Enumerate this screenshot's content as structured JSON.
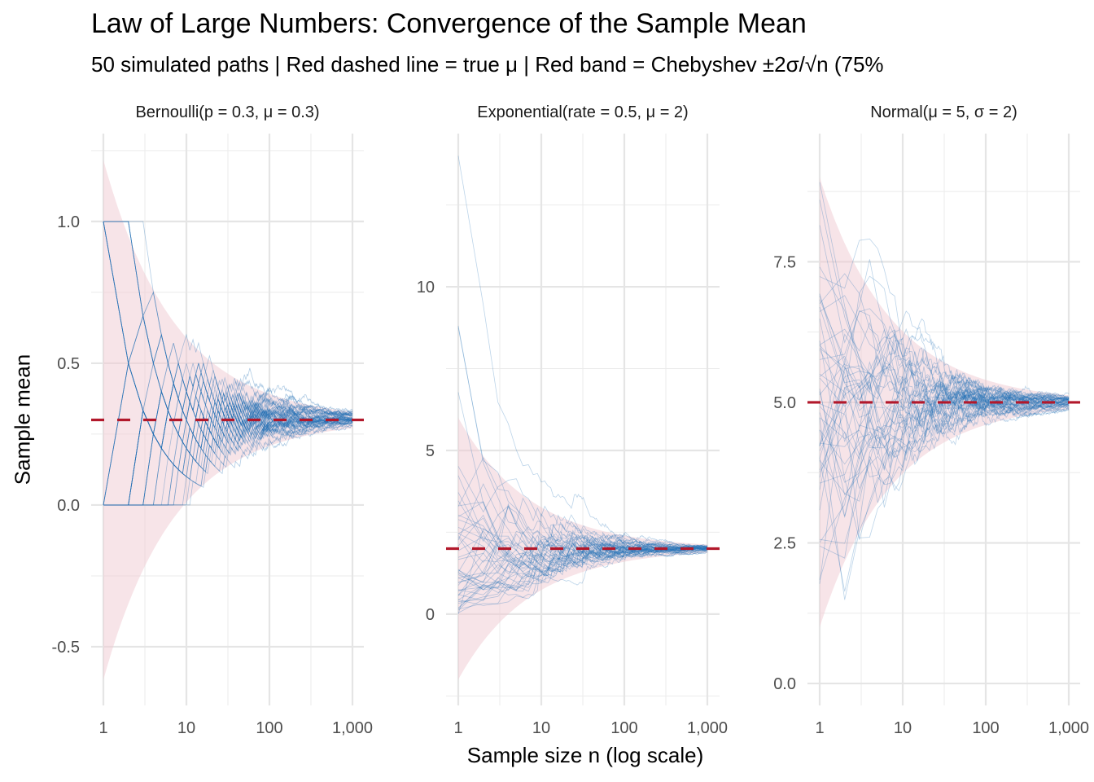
{
  "title": "Law of Large Numbers: Convergence of the Sample Mean",
  "subtitle": "50 simulated paths  |  Red dashed line = true μ  |  Red band = Chebyshev ±2σ/√n  (75%",
  "chart_data": {
    "type": "line",
    "title": "Law of Large Numbers: Convergence of the Sample Mean",
    "subtitle": "50 simulated paths  |  Red dashed line = true μ  |  Red band = Chebyshev ±2σ/√n  (75%",
    "xlabel": "Sample size n (log scale)",
    "ylabel": "Sample mean",
    "x_scale": "log10",
    "x_range": [
      1,
      1000
    ],
    "x_ticks": [
      1,
      10,
      100,
      1000
    ],
    "x_tick_labels": [
      "1",
      "10",
      "100",
      "1,000"
    ],
    "n_paths": 50,
    "grid": true,
    "legend": "none",
    "colors": {
      "paths": "#2171b5",
      "true_mean": "#b2182b",
      "band": "#f0c9d2"
    },
    "panels": [
      {
        "strip": "Bernoulli(p = 0.3,  μ = 0.3)",
        "distribution": "bernoulli",
        "p": 0.3,
        "mu": 0.3,
        "sigma": 0.4583,
        "ylim": [
          -0.707,
          1.31
        ],
        "y_ticks": [
          -0.5,
          0.0,
          0.5,
          1.0
        ],
        "y_tick_labels": [
          "-0.5",
          "0.0",
          "0.5",
          "1.0"
        ],
        "band_at_n1": [
          -0.62,
          1.22
        ],
        "band_at_n1000": [
          0.271,
          0.329
        ]
      },
      {
        "strip": "Exponential(rate = 0.5,  μ = 2)",
        "distribution": "exponential",
        "rate": 0.5,
        "mu": 2,
        "sigma": 2,
        "ylim": [
          -2.79,
          14.68
        ],
        "y_ticks": [
          0,
          5,
          10
        ],
        "y_tick_labels": [
          "0",
          "5",
          "10"
        ],
        "band_at_n1": [
          -2.0,
          6.0
        ],
        "band_at_n1000": [
          1.87,
          2.13
        ],
        "max_path_value_at_n1": 14.0
      },
      {
        "strip": "Normal(μ = 5, σ = 2)",
        "distribution": "normal",
        "mu": 5,
        "sigma": 2,
        "ylim": [
          -0.39,
          9.78
        ],
        "y_ticks": [
          0.0,
          2.5,
          5.0,
          7.5
        ],
        "y_tick_labels": [
          "0.0",
          "2.5",
          "5.0",
          "7.5"
        ],
        "band_at_n1": [
          1.0,
          9.0
        ],
        "band_at_n1000": [
          4.87,
          5.13
        ]
      }
    ]
  }
}
